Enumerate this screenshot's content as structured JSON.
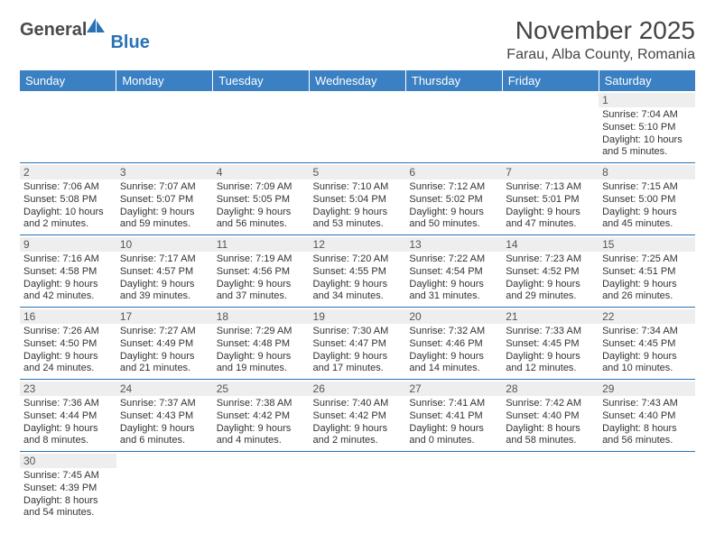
{
  "logo": {
    "text1": "General",
    "text2": "Blue"
  },
  "title": "November 2025",
  "location": "Farau, Alba County, Romania",
  "colors": {
    "headerBg": "#3a80c3",
    "headerText": "#ffffff",
    "border": "#2a72b5",
    "dayNumBg": "#eeeeee",
    "logoBlue": "#2a72b5",
    "textGray": "#4a4a4a"
  },
  "weekdays": [
    "Sunday",
    "Monday",
    "Tuesday",
    "Wednesday",
    "Thursday",
    "Friday",
    "Saturday"
  ],
  "weeks": [
    [
      {
        "n": "",
        "lines": [
          "",
          "",
          "",
          ""
        ]
      },
      {
        "n": "",
        "lines": [
          "",
          "",
          "",
          ""
        ]
      },
      {
        "n": "",
        "lines": [
          "",
          "",
          "",
          ""
        ]
      },
      {
        "n": "",
        "lines": [
          "",
          "",
          "",
          ""
        ]
      },
      {
        "n": "",
        "lines": [
          "",
          "",
          "",
          ""
        ]
      },
      {
        "n": "",
        "lines": [
          "",
          "",
          "",
          ""
        ]
      },
      {
        "n": "1",
        "lines": [
          "Sunrise: 7:04 AM",
          "Sunset: 5:10 PM",
          "Daylight: 10 hours",
          "and 5 minutes."
        ]
      }
    ],
    [
      {
        "n": "2",
        "lines": [
          "Sunrise: 7:06 AM",
          "Sunset: 5:08 PM",
          "Daylight: 10 hours",
          "and 2 minutes."
        ]
      },
      {
        "n": "3",
        "lines": [
          "Sunrise: 7:07 AM",
          "Sunset: 5:07 PM",
          "Daylight: 9 hours",
          "and 59 minutes."
        ]
      },
      {
        "n": "4",
        "lines": [
          "Sunrise: 7:09 AM",
          "Sunset: 5:05 PM",
          "Daylight: 9 hours",
          "and 56 minutes."
        ]
      },
      {
        "n": "5",
        "lines": [
          "Sunrise: 7:10 AM",
          "Sunset: 5:04 PM",
          "Daylight: 9 hours",
          "and 53 minutes."
        ]
      },
      {
        "n": "6",
        "lines": [
          "Sunrise: 7:12 AM",
          "Sunset: 5:02 PM",
          "Daylight: 9 hours",
          "and 50 minutes."
        ]
      },
      {
        "n": "7",
        "lines": [
          "Sunrise: 7:13 AM",
          "Sunset: 5:01 PM",
          "Daylight: 9 hours",
          "and 47 minutes."
        ]
      },
      {
        "n": "8",
        "lines": [
          "Sunrise: 7:15 AM",
          "Sunset: 5:00 PM",
          "Daylight: 9 hours",
          "and 45 minutes."
        ]
      }
    ],
    [
      {
        "n": "9",
        "lines": [
          "Sunrise: 7:16 AM",
          "Sunset: 4:58 PM",
          "Daylight: 9 hours",
          "and 42 minutes."
        ]
      },
      {
        "n": "10",
        "lines": [
          "Sunrise: 7:17 AM",
          "Sunset: 4:57 PM",
          "Daylight: 9 hours",
          "and 39 minutes."
        ]
      },
      {
        "n": "11",
        "lines": [
          "Sunrise: 7:19 AM",
          "Sunset: 4:56 PM",
          "Daylight: 9 hours",
          "and 37 minutes."
        ]
      },
      {
        "n": "12",
        "lines": [
          "Sunrise: 7:20 AM",
          "Sunset: 4:55 PM",
          "Daylight: 9 hours",
          "and 34 minutes."
        ]
      },
      {
        "n": "13",
        "lines": [
          "Sunrise: 7:22 AM",
          "Sunset: 4:54 PM",
          "Daylight: 9 hours",
          "and 31 minutes."
        ]
      },
      {
        "n": "14",
        "lines": [
          "Sunrise: 7:23 AM",
          "Sunset: 4:52 PM",
          "Daylight: 9 hours",
          "and 29 minutes."
        ]
      },
      {
        "n": "15",
        "lines": [
          "Sunrise: 7:25 AM",
          "Sunset: 4:51 PM",
          "Daylight: 9 hours",
          "and 26 minutes."
        ]
      }
    ],
    [
      {
        "n": "16",
        "lines": [
          "Sunrise: 7:26 AM",
          "Sunset: 4:50 PM",
          "Daylight: 9 hours",
          "and 24 minutes."
        ]
      },
      {
        "n": "17",
        "lines": [
          "Sunrise: 7:27 AM",
          "Sunset: 4:49 PM",
          "Daylight: 9 hours",
          "and 21 minutes."
        ]
      },
      {
        "n": "18",
        "lines": [
          "Sunrise: 7:29 AM",
          "Sunset: 4:48 PM",
          "Daylight: 9 hours",
          "and 19 minutes."
        ]
      },
      {
        "n": "19",
        "lines": [
          "Sunrise: 7:30 AM",
          "Sunset: 4:47 PM",
          "Daylight: 9 hours",
          "and 17 minutes."
        ]
      },
      {
        "n": "20",
        "lines": [
          "Sunrise: 7:32 AM",
          "Sunset: 4:46 PM",
          "Daylight: 9 hours",
          "and 14 minutes."
        ]
      },
      {
        "n": "21",
        "lines": [
          "Sunrise: 7:33 AM",
          "Sunset: 4:45 PM",
          "Daylight: 9 hours",
          "and 12 minutes."
        ]
      },
      {
        "n": "22",
        "lines": [
          "Sunrise: 7:34 AM",
          "Sunset: 4:45 PM",
          "Daylight: 9 hours",
          "and 10 minutes."
        ]
      }
    ],
    [
      {
        "n": "23",
        "lines": [
          "Sunrise: 7:36 AM",
          "Sunset: 4:44 PM",
          "Daylight: 9 hours",
          "and 8 minutes."
        ]
      },
      {
        "n": "24",
        "lines": [
          "Sunrise: 7:37 AM",
          "Sunset: 4:43 PM",
          "Daylight: 9 hours",
          "and 6 minutes."
        ]
      },
      {
        "n": "25",
        "lines": [
          "Sunrise: 7:38 AM",
          "Sunset: 4:42 PM",
          "Daylight: 9 hours",
          "and 4 minutes."
        ]
      },
      {
        "n": "26",
        "lines": [
          "Sunrise: 7:40 AM",
          "Sunset: 4:42 PM",
          "Daylight: 9 hours",
          "and 2 minutes."
        ]
      },
      {
        "n": "27",
        "lines": [
          "Sunrise: 7:41 AM",
          "Sunset: 4:41 PM",
          "Daylight: 9 hours",
          "and 0 minutes."
        ]
      },
      {
        "n": "28",
        "lines": [
          "Sunrise: 7:42 AM",
          "Sunset: 4:40 PM",
          "Daylight: 8 hours",
          "and 58 minutes."
        ]
      },
      {
        "n": "29",
        "lines": [
          "Sunrise: 7:43 AM",
          "Sunset: 4:40 PM",
          "Daylight: 8 hours",
          "and 56 minutes."
        ]
      }
    ],
    [
      {
        "n": "30",
        "lines": [
          "Sunrise: 7:45 AM",
          "Sunset: 4:39 PM",
          "Daylight: 8 hours",
          "and 54 minutes."
        ]
      },
      {
        "n": "",
        "lines": [
          "",
          "",
          "",
          ""
        ]
      },
      {
        "n": "",
        "lines": [
          "",
          "",
          "",
          ""
        ]
      },
      {
        "n": "",
        "lines": [
          "",
          "",
          "",
          ""
        ]
      },
      {
        "n": "",
        "lines": [
          "",
          "",
          "",
          ""
        ]
      },
      {
        "n": "",
        "lines": [
          "",
          "",
          "",
          ""
        ]
      },
      {
        "n": "",
        "lines": [
          "",
          "",
          "",
          ""
        ]
      }
    ]
  ]
}
